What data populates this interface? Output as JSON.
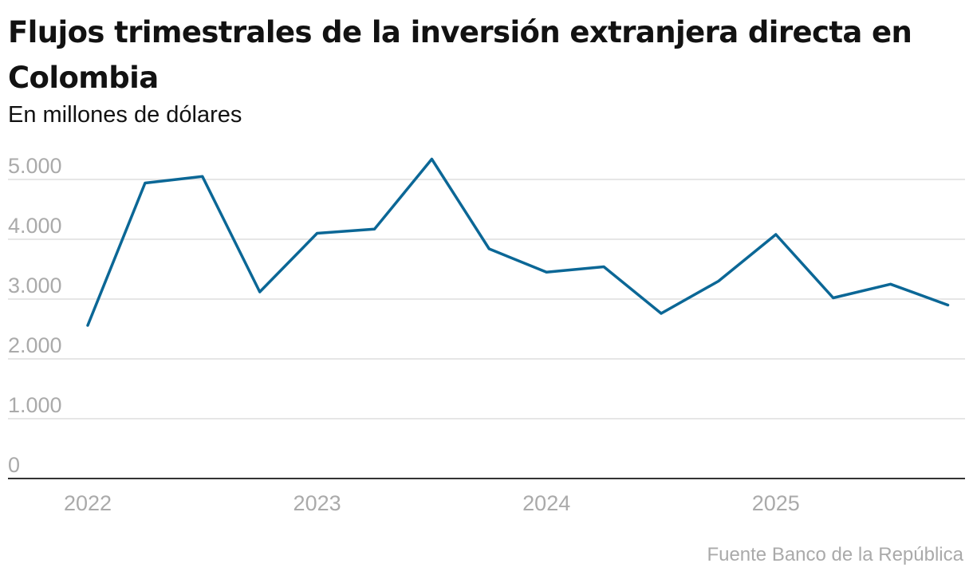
{
  "chart_data": {
    "type": "line",
    "title": "Flujos trimestrales de la inversión extranjera directa en Colombia",
    "subtitle": "En millones de dólares",
    "source": "Fuente Banco de la República",
    "x": [
      "2022-Q1",
      "2022-Q2",
      "2022-Q3",
      "2022-Q4",
      "2023-Q1",
      "2023-Q2",
      "2023-Q3",
      "2023-Q4",
      "2024-Q1",
      "2024-Q2",
      "2024-Q3",
      "2024-Q4",
      "2025-Q1",
      "2025-Q2",
      "2025-Q3",
      "2025-Q4"
    ],
    "series": [
      {
        "name": "",
        "color": "#0b6796",
        "values": [
          2560,
          4940,
          5050,
          3120,
          4100,
          4170,
          5340,
          3840,
          3450,
          3540,
          2760,
          3300,
          4080,
          3020,
          3250,
          2900
        ]
      }
    ],
    "x_tick_labels": [
      "2022",
      "2023",
      "2024",
      "2025"
    ],
    "y_ticks": [
      0,
      1000,
      2000,
      3000,
      4000,
      5000
    ],
    "y_tick_labels": [
      "0",
      "1.000",
      "2.000",
      "3.000",
      "4.000",
      "5.000"
    ],
    "ylim": [
      0,
      5000
    ],
    "grid": true,
    "xlabel": "",
    "ylabel": ""
  }
}
